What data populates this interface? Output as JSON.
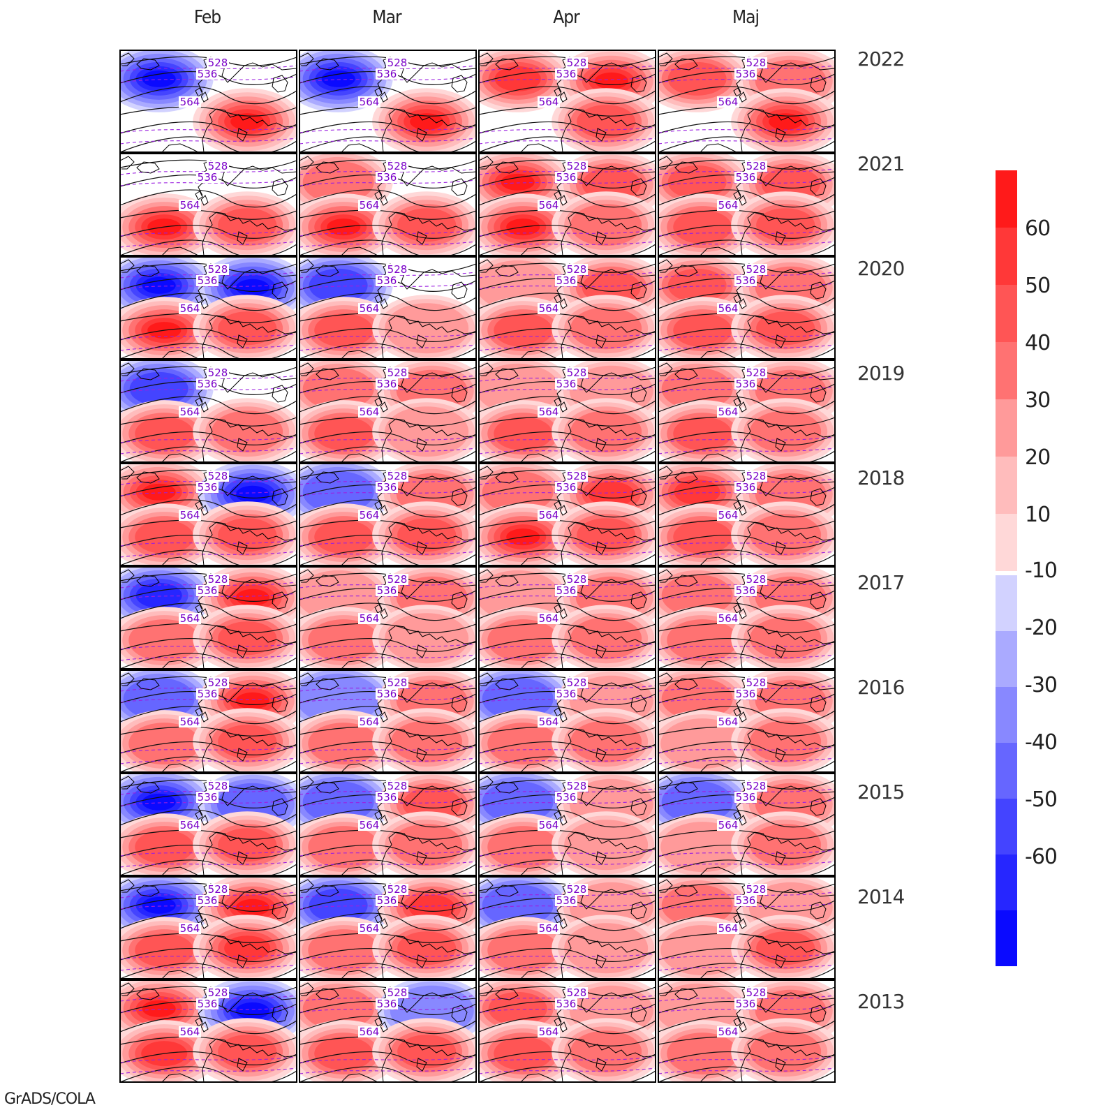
{
  "months": [
    "Feb",
    "Mar",
    "Apr",
    "Maj"
  ],
  "years": [
    "2022",
    "2021",
    "2020",
    "2019",
    "2018",
    "2017",
    "2016",
    "2015",
    "2014",
    "2013"
  ],
  "colorbar": {
    "positive_levels": [
      "60",
      "50",
      "40",
      "30",
      "20",
      "10"
    ],
    "negative_levels": [
      "-10",
      "-20",
      "-30",
      "-40",
      "-50",
      "-60"
    ],
    "positive_colors": [
      "#ff1a1a",
      "#ff3838",
      "#ff5555",
      "#ff7272",
      "#ff9a9a",
      "#ffbcbc",
      "#ffd8d8"
    ],
    "negative_colors": [
      "#d2d2ff",
      "#aaaaff",
      "#8888ff",
      "#6666ff",
      "#4444ff",
      "#2626ff",
      "#0a0aff"
    ]
  },
  "contour_labels": [
    "528",
    "536",
    "564"
  ],
  "credit": "GrADS/COLA",
  "anomalies": [
    [
      [
        -60,
        0,
        0,
        60
      ],
      [
        0,
        0,
        60,
        40
      ],
      [
        -60,
        -60,
        60,
        40
      ],
      [
        -40,
        0,
        40,
        30
      ],
      [
        60,
        -60,
        40,
        40
      ],
      [
        -50,
        60,
        30,
        40
      ],
      [
        -30,
        60,
        30,
        40
      ],
      [
        -60,
        -30,
        40,
        40
      ],
      [
        -60,
        60,
        40,
        50
      ],
      [
        60,
        -60,
        50,
        40
      ]
    ],
    [
      [
        -60,
        0,
        0,
        60
      ],
      [
        30,
        0,
        60,
        40
      ],
      [
        -40,
        0,
        40,
        20
      ],
      [
        30,
        30,
        40,
        20
      ],
      [
        -30,
        30,
        40,
        40
      ],
      [
        20,
        30,
        30,
        20
      ],
      [
        -20,
        30,
        30,
        30
      ],
      [
        -30,
        40,
        30,
        30
      ],
      [
        -40,
        50,
        30,
        40
      ],
      [
        30,
        -20,
        40,
        40
      ]
    ],
    [
      [
        50,
        60,
        0,
        40
      ],
      [
        60,
        40,
        60,
        30
      ],
      [
        20,
        40,
        40,
        30
      ],
      [
        20,
        20,
        40,
        30
      ],
      [
        30,
        50,
        60,
        40
      ],
      [
        20,
        30,
        30,
        30
      ],
      [
        -30,
        20,
        30,
        30
      ],
      [
        -30,
        20,
        30,
        20
      ],
      [
        -30,
        20,
        30,
        20
      ],
      [
        40,
        20,
        40,
        30
      ]
    ],
    [
      [
        40,
        30,
        0,
        60
      ],
      [
        40,
        40,
        40,
        40
      ],
      [
        40,
        30,
        40,
        40
      ],
      [
        30,
        30,
        40,
        30
      ],
      [
        50,
        30,
        40,
        30
      ],
      [
        30,
        30,
        30,
        30
      ],
      [
        30,
        30,
        20,
        30
      ],
      [
        -30,
        30,
        20,
        30
      ],
      [
        30,
        20,
        20,
        40
      ],
      [
        20,
        30,
        30,
        30
      ]
    ]
  ]
}
